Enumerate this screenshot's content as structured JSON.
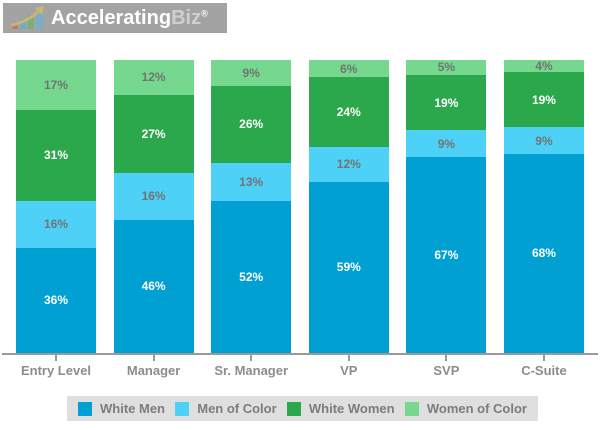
{
  "header": {
    "background_color": "#a3a3a3",
    "logo_icon": "growth-chart-icon",
    "brand_part1": "Accelerating",
    "brand_part2": "Biz",
    "registered_mark": "®"
  },
  "chart_data": {
    "type": "bar",
    "stacked": true,
    "value_suffix": "%",
    "ylim": [
      0,
      100
    ],
    "grid": false,
    "legend_position": "bottom",
    "legend_background": "#dfdfdf",
    "axis_color": "#9a9a9a",
    "categories": [
      "Entry Level",
      "Manager",
      "Sr. Manager",
      "VP",
      "SVP",
      "C-Suite"
    ],
    "series": [
      {
        "name": "White Men",
        "color": "#00a0d2",
        "label_color": "#ffffff",
        "values": [
          36,
          46,
          52,
          59,
          67,
          68
        ]
      },
      {
        "name": "Men of Color",
        "color": "#4dd1f7",
        "label_color": "#737373",
        "values": [
          16,
          16,
          13,
          12,
          9,
          9
        ]
      },
      {
        "name": "White Women",
        "color": "#2ba84c",
        "label_color": "#ffffff",
        "values": [
          31,
          27,
          26,
          24,
          19,
          19
        ]
      },
      {
        "name": "Women of Color",
        "color": "#75d88e",
        "label_color": "#737373",
        "values": [
          17,
          12,
          9,
          6,
          5,
          4
        ]
      }
    ]
  }
}
